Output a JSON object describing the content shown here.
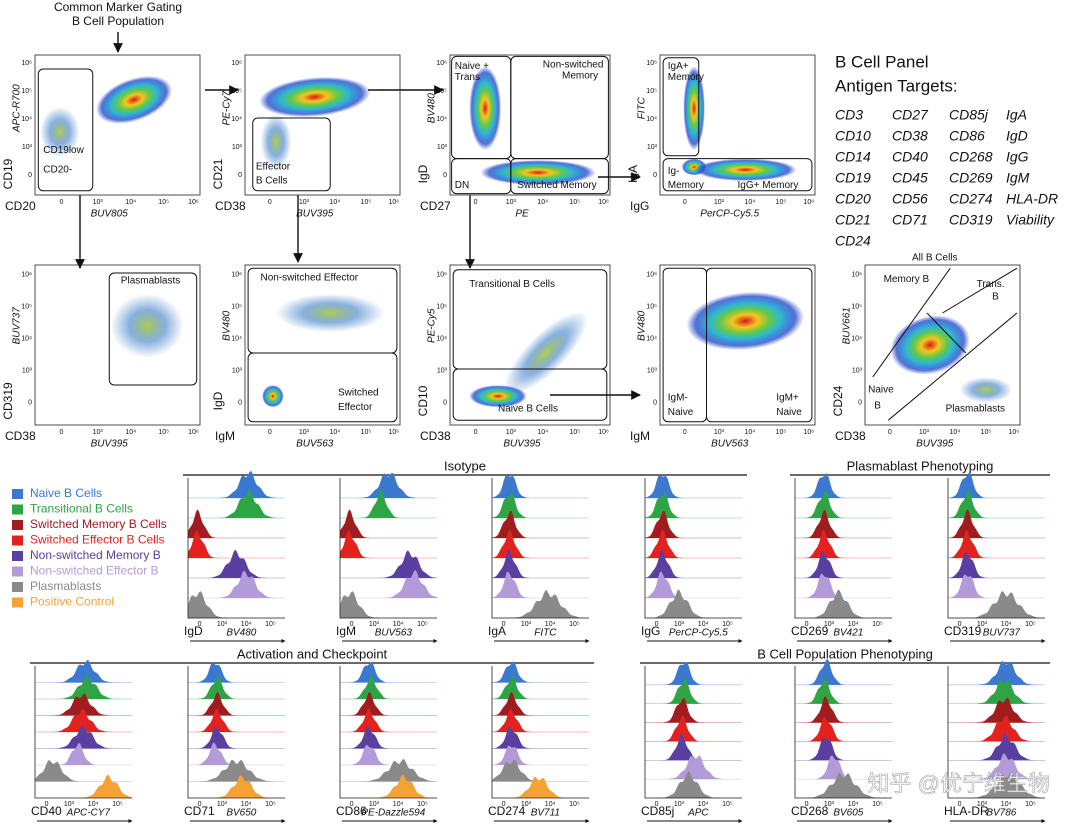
{
  "gating_note": [
    "Common Marker Gating",
    "B Cell Population"
  ],
  "ticks": [
    "0",
    "10³",
    "10⁴",
    "10⁵",
    "10⁶"
  ],
  "scatter_plots": [
    {
      "y_marker": "CD19",
      "y_fluor": "APC-R700",
      "x_marker": "CD20",
      "x_fluor": "BUV805",
      "gates": [
        "CD19low",
        "CD20-"
      ]
    },
    {
      "y_marker": "CD21",
      "y_fluor": "PE-Cy7",
      "x_marker": "CD38",
      "x_fluor": "BUV395",
      "gates": [
        "Effector",
        "B Cells"
      ]
    },
    {
      "y_marker": "IgD",
      "y_fluor": "BV480",
      "x_marker": "CD27",
      "x_fluor": "PE",
      "gates": [
        "Naive +",
        "Trans",
        "Non-switched",
        "Memory",
        "DN",
        "Switched Memory"
      ]
    },
    {
      "y_marker": "IgA",
      "y_fluor": "FITC",
      "x_marker": "IgG",
      "x_fluor": "PerCP-Cy5.5",
      "gates": [
        "IgA+",
        "Memory",
        "Ig-",
        "Memory",
        "IgG+ Memory"
      ]
    },
    {
      "y_marker": "CD319",
      "y_fluor": "BUV737",
      "x_marker": "CD38",
      "x_fluor": "BUV395",
      "gates": [
        "Plasmablasts"
      ]
    },
    {
      "y_marker": "IgD",
      "y_fluor": "BV480",
      "x_marker": "IgM",
      "x_fluor": "BUV563",
      "gates": [
        "Non-switched Effector",
        "Switched",
        "Effector"
      ]
    },
    {
      "y_marker": "CD10",
      "y_fluor": "PE-Cy5",
      "x_marker": "CD38",
      "x_fluor": "BUV395",
      "gates": [
        "Transitional B Cells",
        "Naive B Cells"
      ]
    },
    {
      "y_fluor": "BV480",
      "x_marker": "IgM",
      "x_fluor": "BUV563",
      "gates": [
        "IgM-",
        "Naive",
        "IgM+",
        "Naive"
      ]
    },
    {
      "title": "All B Cells",
      "y_marker": "CD24",
      "y_fluor": "BUV661",
      "x_marker": "CD38",
      "x_fluor": "BUV395",
      "gates": [
        "Memory B",
        "Trans.",
        "B",
        "Naive",
        "B",
        "Plasmablasts"
      ]
    }
  ],
  "panel": {
    "title": "B Cell Panel",
    "subtitle": "Antigen Targets:",
    "antigens": [
      [
        "CD3",
        "CD27",
        "CD85j",
        "IgA"
      ],
      [
        "CD10",
        "CD38",
        "CD86",
        "IgD"
      ],
      [
        "CD14",
        "CD40",
        "CD268",
        "IgG"
      ],
      [
        "CD19",
        "CD45",
        "CD269",
        "IgM"
      ],
      [
        "CD20",
        "CD56",
        "CD274",
        "HLA-DR"
      ],
      [
        "CD21",
        "CD71",
        "CD319",
        "Viability"
      ],
      [
        "CD24"
      ]
    ]
  },
  "legend": [
    {
      "name": "Naive B Cells",
      "color": "#3b78d0"
    },
    {
      "name": "Transitional B Cells",
      "color": "#2ea444"
    },
    {
      "name": "Switched Memory B Cells",
      "color": "#a11c1f"
    },
    {
      "name": "Switched Effector B Cells",
      "color": "#e3221f"
    },
    {
      "name": "Non-switched Memory B",
      "color": "#5a3ea0"
    },
    {
      "name": "Non-switched Effector B",
      "color": "#b39ad8"
    },
    {
      "name": "Plasmablasts",
      "color": "#8a8a8a"
    },
    {
      "name": "Positive Control",
      "color": "#f4a233"
    }
  ],
  "histogram_groups": [
    {
      "title": "Isotype",
      "plots": [
        {
          "marker": "IgD",
          "fluor": "BV480"
        },
        {
          "marker": "IgM",
          "fluor": "BUV563"
        },
        {
          "marker": "IgA",
          "fluor": "FITC"
        },
        {
          "marker": "IgG",
          "fluor": "PerCP-Cy5.5"
        }
      ]
    },
    {
      "title": "Plasmablast Phenotyping",
      "plots": [
        {
          "marker": "CD269",
          "fluor": "BV421"
        },
        {
          "marker": "CD319",
          "fluor": "BUV737"
        }
      ]
    },
    {
      "title": "Activation and Checkpoint",
      "plots": [
        {
          "marker": "CD40",
          "fluor": "APC-CY7"
        },
        {
          "marker": "CD71",
          "fluor": "BV650"
        },
        {
          "marker": "CD86",
          "fluor": "PE-Dazzle594"
        },
        {
          "marker": "CD274",
          "fluor": "BV711"
        }
      ]
    },
    {
      "title": "B Cell Population Phenotyping",
      "plots": [
        {
          "marker": "CD85j",
          "fluor": "APC"
        },
        {
          "marker": "CD268",
          "fluor": "BV605"
        },
        {
          "marker": "HLA-DR",
          "fluor": "BV786"
        }
      ]
    }
  ],
  "watermark": "知乎 @优宁维生物"
}
